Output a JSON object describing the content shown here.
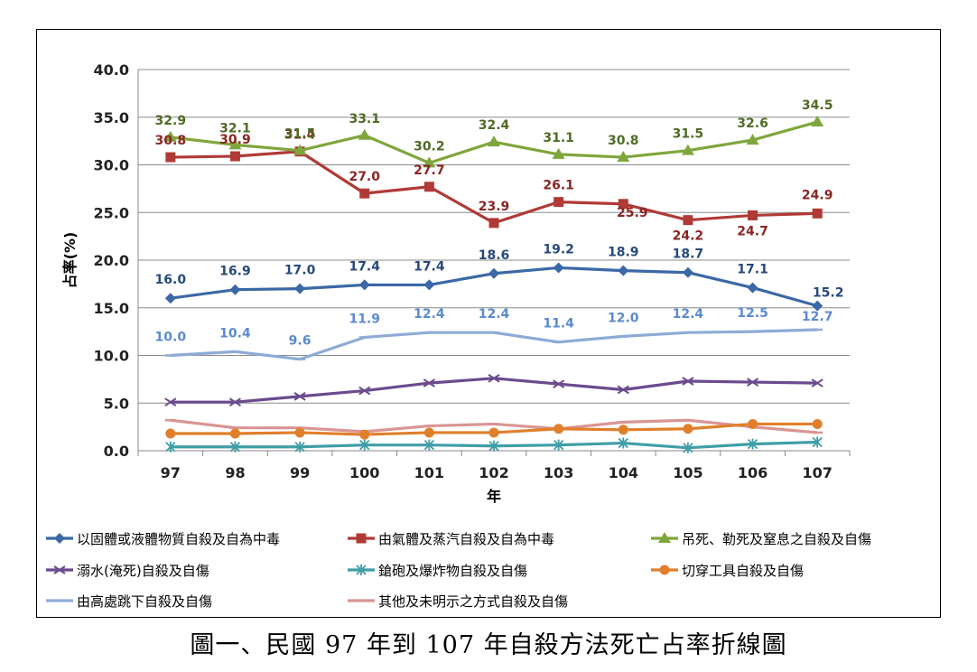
{
  "caption": "圖一、民國 97 年到 107 年自殺方法死亡占率折線圖",
  "chart_data": {
    "type": "line",
    "title": "",
    "xlabel": "年",
    "ylabel": "占率(%)",
    "ylim": [
      0,
      40
    ],
    "y_ticks": [
      "0.0",
      "5.0",
      "10.0",
      "15.0",
      "20.0",
      "25.0",
      "30.0",
      "35.0",
      "40.0"
    ],
    "grid": true,
    "legend_position": "bottom",
    "categories": [
      "97",
      "98",
      "99",
      "100",
      "101",
      "102",
      "103",
      "104",
      "105",
      "106",
      "107"
    ],
    "series": [
      {
        "name": "以固體或液體物質自殺及自為中毒",
        "color": "#3b68a6",
        "marker": "diamond",
        "values": [
          16.0,
          16.9,
          17.0,
          17.4,
          17.4,
          18.6,
          19.2,
          18.9,
          18.7,
          17.1,
          15.2
        ],
        "labels": [
          "16.0",
          "16.9",
          "17.0",
          "17.4",
          "17.4",
          "18.6",
          "19.2",
          "18.9",
          "18.7",
          "17.1",
          "15.2"
        ]
      },
      {
        "name": "由氣體及蒸汽自殺及自為中毒",
        "color": "#b03a36",
        "marker": "square",
        "values": [
          30.8,
          30.9,
          31.4,
          27.0,
          27.7,
          23.9,
          26.1,
          25.9,
          24.2,
          24.7,
          24.9
        ],
        "labels": [
          "30.8",
          "30.9",
          "31.4",
          "27.0",
          "27.7",
          "23.9",
          "26.1",
          "25.9",
          "24.2",
          "24.7",
          "24.9"
        ]
      },
      {
        "name": "吊死、勒死及窒息之自殺及自傷",
        "color": "#7fa63c",
        "marker": "triangle",
        "values": [
          32.9,
          32.1,
          31.5,
          33.1,
          30.2,
          32.4,
          31.1,
          30.8,
          31.5,
          32.6,
          34.5
        ],
        "labels": [
          "32.9",
          "32.1",
          "31.5",
          "33.1",
          "30.2",
          "32.4",
          "31.1",
          "30.8",
          "31.5",
          "32.6",
          "34.5"
        ]
      },
      {
        "name": "溺水(淹死)自殺及自傷",
        "color": "#6b4a8e",
        "marker": "x",
        "values": [
          5.1,
          5.1,
          5.7,
          6.3,
          7.1,
          7.6,
          7.0,
          6.4,
          7.3,
          7.2,
          7.1
        ],
        "labels": []
      },
      {
        "name": "鎗砲及爆炸物自殺及自傷",
        "color": "#3f9ea6",
        "marker": "star",
        "values": [
          0.4,
          0.4,
          0.4,
          0.6,
          0.6,
          0.5,
          0.6,
          0.8,
          0.3,
          0.7,
          0.9
        ],
        "labels": []
      },
      {
        "name": "切穿工具自殺及自傷",
        "color": "#e07f2a",
        "marker": "circle",
        "values": [
          1.8,
          1.8,
          1.9,
          1.7,
          1.9,
          1.9,
          2.3,
          2.2,
          2.3,
          2.8,
          2.8
        ],
        "labels": []
      },
      {
        "name": "由高處跳下自殺及自傷",
        "color": "#8eabd6",
        "marker": "dash",
        "values": [
          10.0,
          10.4,
          9.6,
          11.9,
          12.4,
          12.4,
          11.4,
          12.0,
          12.4,
          12.5,
          12.7
        ],
        "labels": [
          "10.0",
          "10.4",
          "9.6",
          "11.9",
          "12.4",
          "12.4",
          "11.4",
          "12.0",
          "12.4",
          "12.5",
          "12.7"
        ]
      },
      {
        "name": "其他及未明示之方式自殺及自傷",
        "color": "#d99594",
        "marker": "dash",
        "values": [
          3.2,
          2.4,
          2.4,
          2.0,
          2.6,
          2.8,
          2.3,
          3.0,
          3.2,
          2.5,
          1.9
        ],
        "labels": []
      }
    ]
  }
}
